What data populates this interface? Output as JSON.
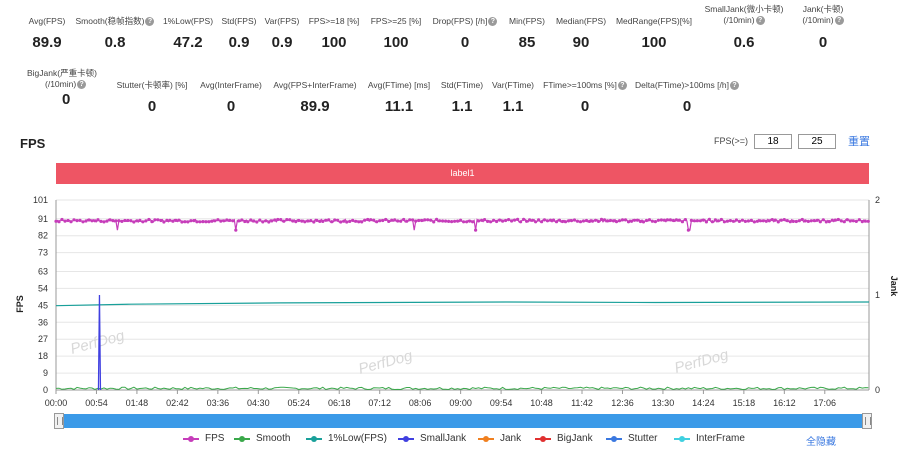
{
  "stats_row1": [
    {
      "label": "Avg(FPS)",
      "value": "89.9",
      "help": false
    },
    {
      "label": "Smooth(稳帧指数)",
      "value": "0.8",
      "help": true
    },
    {
      "label": "1%Low(FPS)",
      "value": "47.2",
      "help": false
    },
    {
      "label": "Std(FPS)",
      "value": "0.9",
      "help": false
    },
    {
      "label": "Var(FPS)",
      "value": "0.9",
      "help": false
    },
    {
      "label": "FPS>=18 [%]",
      "value": "100",
      "help": false
    },
    {
      "label": "FPS>=25 [%]",
      "value": "100",
      "help": false
    },
    {
      "label": "Drop(FPS) [/h]",
      "value": "0",
      "help": true
    },
    {
      "label": "Min(FPS)",
      "value": "85",
      "help": false
    },
    {
      "label": "Median(FPS)",
      "value": "90",
      "help": false
    },
    {
      "label": "MedRange(FPS)[%]",
      "value": "100",
      "help": false
    },
    {
      "label": "SmallJank(微小卡顿)",
      "label2": "(/10min)",
      "value": "0.6",
      "help": true
    },
    {
      "label": "Jank(卡顿)",
      "label2": "(/10min)",
      "value": "0",
      "help": true
    }
  ],
  "stats_row2": [
    {
      "label": "BigJank(严重卡顿)",
      "label2": "(/10min)",
      "value": "0",
      "help": true
    },
    {
      "label": "Stutter(卡顿率) [%]",
      "value": "0",
      "help": false
    },
    {
      "label": "Avg(InterFrame)",
      "value": "0",
      "help": false
    },
    {
      "label": "Avg(FPS+InterFrame)",
      "value": "89.9",
      "help": false
    },
    {
      "label": "Avg(FTime) [ms]",
      "value": "11.1",
      "help": false
    },
    {
      "label": "Std(FTime)",
      "value": "1.1",
      "help": false
    },
    {
      "label": "Var(FTime)",
      "value": "1.1",
      "help": false
    },
    {
      "label": "FTime>=100ms [%]",
      "value": "0",
      "help": true
    },
    {
      "label": "Delta(FTime)>100ms [/h]",
      "value": "0",
      "help": true
    }
  ],
  "fps_panel": {
    "title": "FPS",
    "threshold_label": "FPS(>=)",
    "threshold_1": "18",
    "threshold_2": "25",
    "reset_label": "重置",
    "label_bar": "label1",
    "hide_all_label": "全隐藏"
  },
  "colors": {
    "fps": "#c63dba",
    "smooth": "#3aa84a",
    "low1": "#19a09a",
    "smalljank": "#4040e0",
    "jank": "#f08020",
    "bigjank": "#e03030",
    "stutter": "#3a78e0",
    "interframe": "#40d0e0",
    "label_bar": "#ee5564"
  },
  "chart_data": {
    "type": "line",
    "title": "",
    "ylabel": "FPS",
    "y2label": "Jank",
    "ylim": [
      0,
      101
    ],
    "y2lim": [
      0,
      2
    ],
    "y_ticks": [
      "0",
      "9",
      "18",
      "27",
      "36",
      "45",
      "54",
      "63",
      "73",
      "82",
      "91",
      "101"
    ],
    "y2_ticks": [
      "0",
      "1",
      "2"
    ],
    "x_ticks": [
      "00:00",
      "00:54",
      "01:48",
      "02:42",
      "03:36",
      "04:30",
      "05:24",
      "06:18",
      "07:12",
      "08:06",
      "09:00",
      "09:54",
      "10:48",
      "11:42",
      "12:36",
      "13:30",
      "14:24",
      "15:18",
      "16:12",
      "17:06"
    ],
    "x_range_seconds": [
      0,
      1085
    ],
    "series": [
      {
        "name": "FPS",
        "axis": "left",
        "typical": 90,
        "min": 85,
        "dips_at_seconds": [
          82,
          240,
          478,
          560,
          845
        ]
      },
      {
        "name": "Smooth",
        "axis": "left",
        "typical": 0.8
      },
      {
        "name": "1%Low(FPS)",
        "axis": "left",
        "points": [
          [
            0,
            44.8
          ],
          [
            100,
            45.6
          ],
          [
            300,
            46.3
          ],
          [
            600,
            46.8
          ],
          [
            800,
            46.5
          ],
          [
            1085,
            46.8
          ]
        ]
      },
      {
        "name": "SmallJank",
        "axis": "right",
        "events_at_seconds": [
          58
        ],
        "event_value": 1
      },
      {
        "name": "Jank",
        "axis": "right",
        "values": []
      },
      {
        "name": "BigJank",
        "axis": "right",
        "values": []
      },
      {
        "name": "Stutter",
        "axis": "left",
        "values": []
      },
      {
        "name": "InterFrame",
        "axis": "left",
        "values": []
      }
    ],
    "legend_position": "bottom",
    "grid": true
  }
}
